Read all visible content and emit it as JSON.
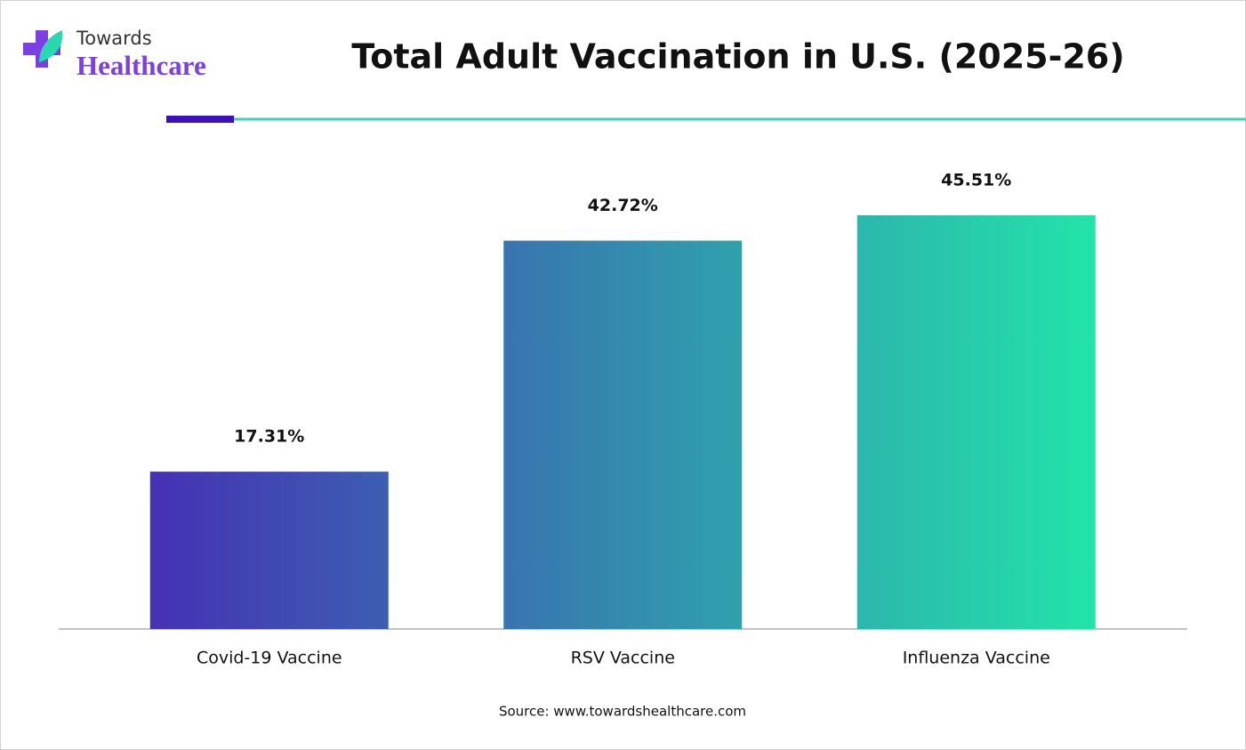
{
  "logo": {
    "line1": "Towards",
    "line2": "Healthcare"
  },
  "chart_data": {
    "type": "bar",
    "title": "Total Adult Vaccination in U.S. (2025-26)",
    "categories": [
      "Covid-19 Vaccine",
      "RSV Vaccine",
      "Influenza Vaccine"
    ],
    "values": [
      17.31,
      42.72,
      45.51
    ],
    "value_labels": [
      "17.31%",
      "42.72%",
      "45.51%"
    ],
    "colors": [
      "#4531b4",
      "#23e4a9"
    ],
    "source": "Source: www.towardshealthcare.com"
  }
}
